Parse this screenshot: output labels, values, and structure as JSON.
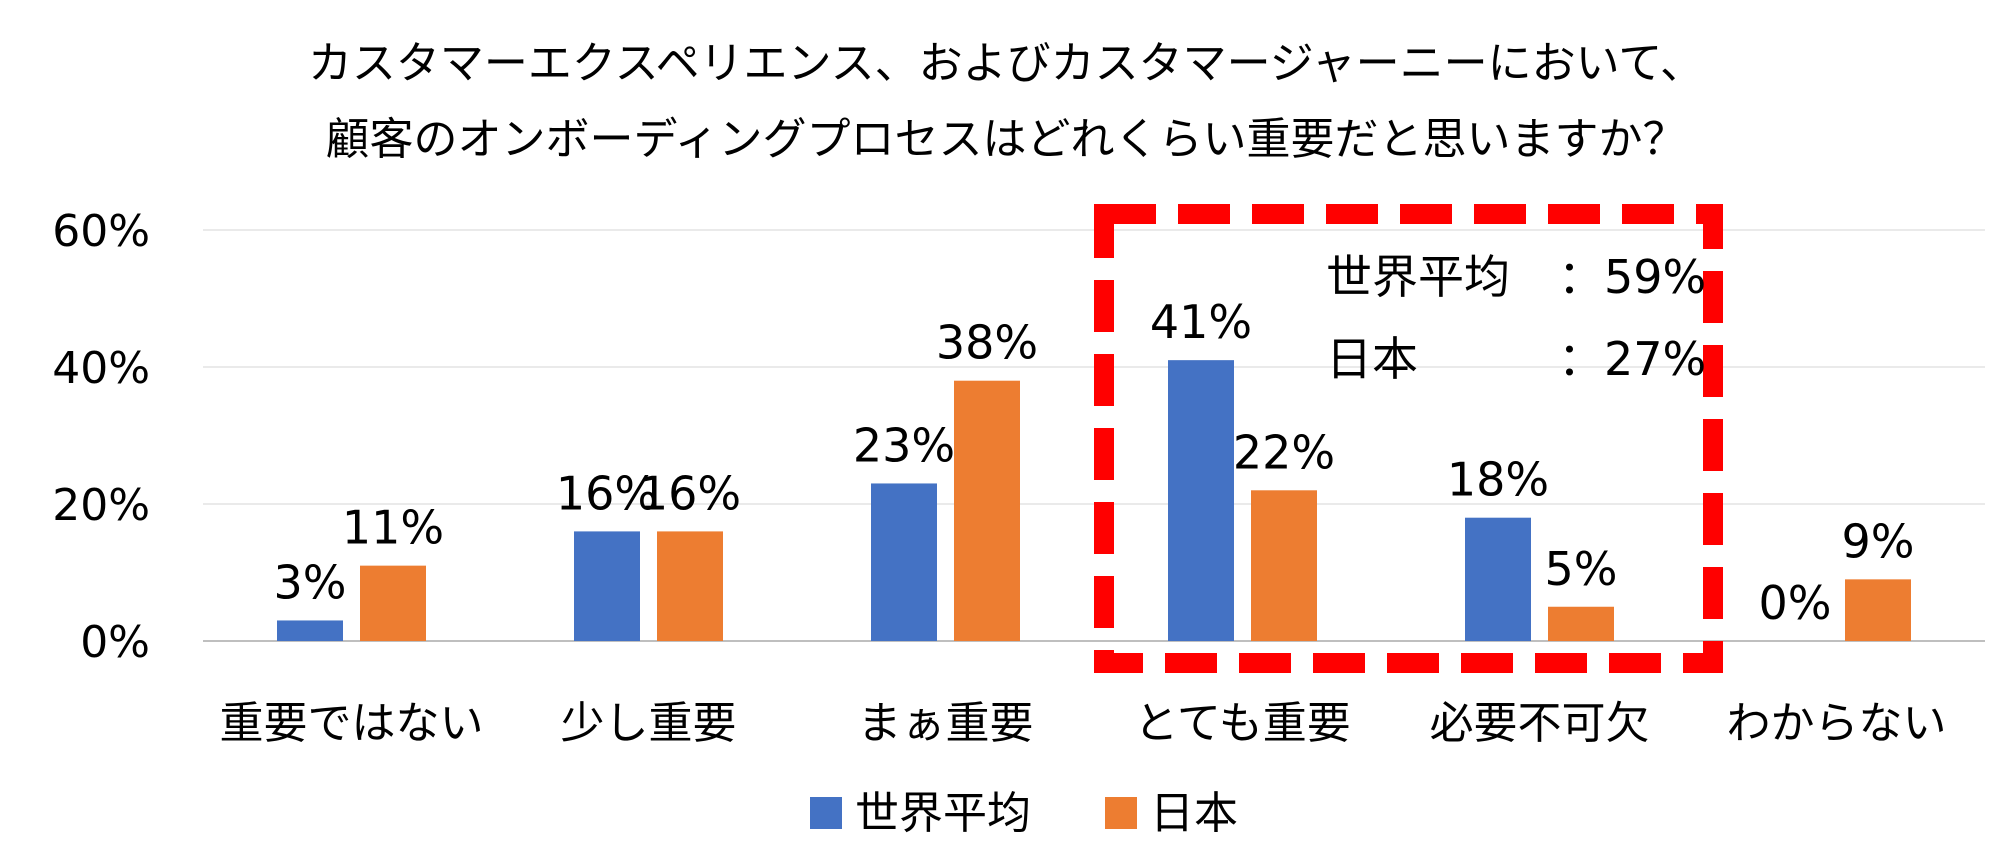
{
  "chart_data": {
    "type": "bar",
    "title_lines": [
      "カスタマーエクスペリエンス、およびカスタマージャーニーにおいて、",
      "顧客のオンボーディングプロセスはどれくらい重要だと思いますか？"
    ],
    "categories": [
      "重要ではない",
      "少し重要",
      "まぁ重要",
      "とても重要",
      "必要不可欠",
      "わからない"
    ],
    "series": [
      {
        "name": "世界平均",
        "color": "#4472C4",
        "values": [
          3,
          16,
          23,
          41,
          18,
          0
        ],
        "labels": [
          "3%",
          "16%",
          "23%",
          "41%",
          "18%",
          "0%"
        ]
      },
      {
        "name": "日本",
        "color": "#ED7D31",
        "values": [
          11,
          16,
          38,
          22,
          5,
          9
        ],
        "labels": [
          "11%",
          "16%",
          "38%",
          "22%",
          "5%",
          "9%"
        ]
      }
    ],
    "ylim": [
      0,
      60
    ],
    "yticks": [
      0,
      20,
      40,
      60
    ],
    "ytick_labels": [
      "0%",
      "20%",
      "40%",
      "60%"
    ],
    "grid": true,
    "legend": "bottom",
    "highlight": {
      "categories": [
        "とても重要",
        "必要不可欠"
      ],
      "color": "#FF0000",
      "notes": [
        {
          "label": "世界平均",
          "value": "：59%"
        },
        {
          "label": "日本",
          "value": "：27%"
        }
      ]
    }
  }
}
